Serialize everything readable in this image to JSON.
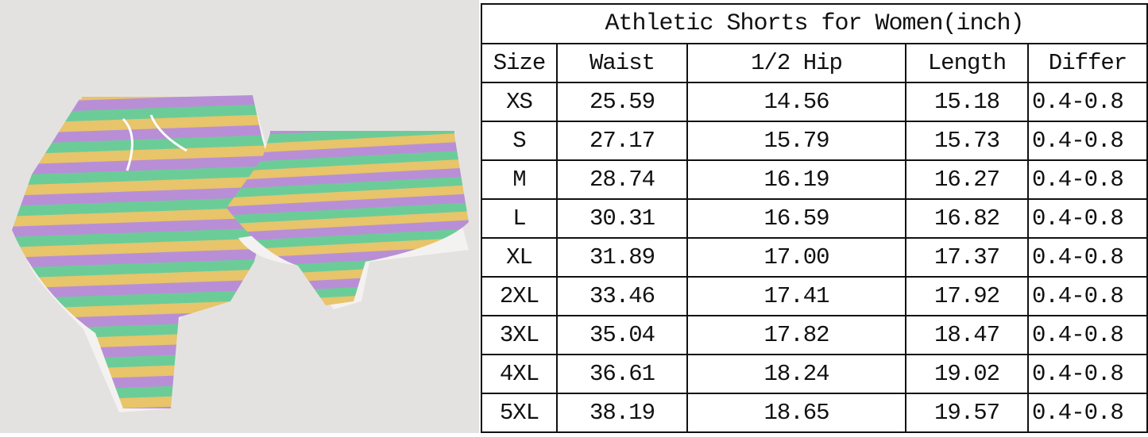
{
  "photo": {
    "subject": "striped-shorts",
    "colors": {
      "purple": "#b88fd6",
      "yellow": "#e8c46a",
      "green": "#6ccc98",
      "background": "#e4e2e1"
    }
  },
  "table": {
    "title": "Athletic Shorts for Women(inch)",
    "headers": [
      "Size",
      "Waist",
      "1/2 Hip",
      "Length",
      "Differ"
    ],
    "rows": [
      [
        "XS",
        "25.59",
        "14.56",
        "15.18",
        "0.4-0.8"
      ],
      [
        "S",
        "27.17",
        "15.79",
        "15.73",
        "0.4-0.8"
      ],
      [
        "M",
        "28.74",
        "16.19",
        "16.27",
        "0.4-0.8"
      ],
      [
        "L",
        "30.31",
        "16.59",
        "16.82",
        "0.4-0.8"
      ],
      [
        "XL",
        "31.89",
        "17.00",
        "17.37",
        "0.4-0.8"
      ],
      [
        "2XL",
        "33.46",
        "17.41",
        "17.92",
        "0.4-0.8"
      ],
      [
        "3XL",
        "35.04",
        "17.82",
        "18.47",
        "0.4-0.8"
      ],
      [
        "4XL",
        "36.61",
        "18.24",
        "19.02",
        "0.4-0.8"
      ],
      [
        "5XL",
        "38.19",
        "18.65",
        "19.57",
        "0.4-0.8"
      ]
    ]
  }
}
